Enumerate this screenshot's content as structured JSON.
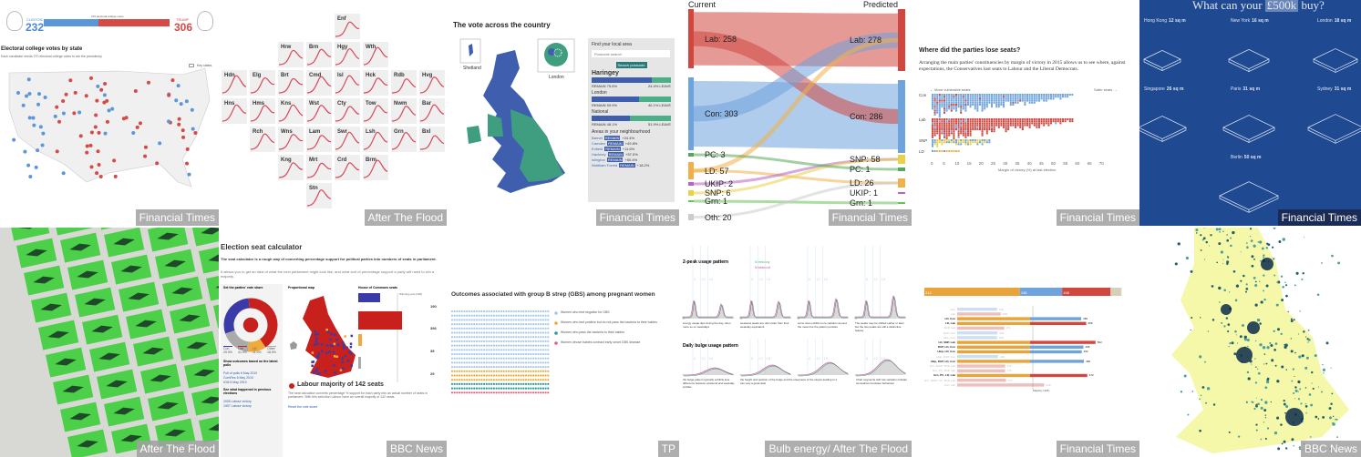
{
  "panels": [
    {
      "source": "Financial Times",
      "clinton_label": "CLINTON",
      "clinton_votes": "232",
      "trump_label": "TRUMP",
      "trump_votes": "306",
      "threshold_label": "270 electoral college votes",
      "title": "Electoral college votes by state",
      "subtitle": "Each candidate needs 270 electoral college votes to win the presidency",
      "key_label": "Key states"
    },
    {
      "source": "After The Flood",
      "tiles": [
        "Enf",
        "Hrw",
        "Brn",
        "Hgy",
        "Wth",
        "Hdn",
        "Elg",
        "Brt",
        "Cmd",
        "Isl",
        "Hck",
        "Rdb",
        "Hvg",
        "Hns",
        "Hms",
        "Kns",
        "Wst",
        "Cty",
        "Tow",
        "Nwm",
        "Bar",
        "Rch",
        "Wns",
        "Lam",
        "Swr",
        "Lsh",
        "Grn",
        "Bxl",
        "Kng",
        "Mrt",
        "Crd",
        "Brm",
        "Stn"
      ]
    },
    {
      "source": "Financial Times",
      "title": "The vote across the country",
      "shetland": "Shetland",
      "london": "London",
      "find_label": "Find your local area",
      "postcode_placeholder": "Postcode search",
      "search_button": "Search postcode",
      "areas": [
        {
          "name": "Haringey",
          "remain": "REMAIN 75.6%",
          "leave": "24.4% LEAVE",
          "pct": 75.6
        },
        {
          "name": "London",
          "remain": "REMAIN 59.9%",
          "leave": "40.1% LEAVE",
          "pct": 59.9
        },
        {
          "name": "National",
          "remain": "REMAIN 48.1%",
          "leave": "51.9% LEAVE",
          "pct": 48.1
        }
      ],
      "neigh_label": "Areas in your neighbourhood",
      "neighbours": [
        {
          "name": "Barnet",
          "badge": "REMAIN",
          "val": "+24.4%"
        },
        {
          "name": "Camden",
          "badge": "REMAIN",
          "val": "+49.8%"
        },
        {
          "name": "Enfield",
          "badge": "REMAIN",
          "val": "+11.6%"
        },
        {
          "name": "Hackney",
          "badge": "REMAIN",
          "val": "+57.0%"
        },
        {
          "name": "Islington",
          "badge": "REMAIN",
          "val": "+50.4%"
        },
        {
          "name": "Waltham Forest",
          "badge": "REMAIN",
          "val": "+18.2%"
        }
      ]
    },
    {
      "source": "Financial Times",
      "current": "Current",
      "predicted": "Predicted",
      "left": [
        {
          "label": "Lab: 258",
          "color": "#d0473f"
        },
        {
          "label": "Con: 303",
          "color": "#6fa3dc"
        },
        {
          "label": "PC: 3",
          "color": "#58a55c"
        },
        {
          "label": "LD: 57",
          "color": "#f2b04a"
        },
        {
          "label": "UKIP: 2",
          "color": "#b565c5"
        },
        {
          "label": "SNP: 6",
          "color": "#e9d24a"
        },
        {
          "label": "Grn: 1",
          "color": "#6abf5a"
        },
        {
          "label": "Oth: 20",
          "color": "#cccccc"
        }
      ],
      "right": [
        {
          "label": "Lab: 278",
          "color": "#d0473f"
        },
        {
          "label": "Con: 286",
          "color": "#6fa3dc"
        },
        {
          "label": "SNP: 58",
          "color": "#e9d24a"
        },
        {
          "label": "PC: 1",
          "color": "#58a55c"
        },
        {
          "label": "LD: 26",
          "color": "#f2b04a"
        },
        {
          "label": "UKIP: 1",
          "color": "#b565c5"
        },
        {
          "label": "Grn: 1",
          "color": "#6abf5a"
        }
      ]
    },
    {
      "source": "Financial Times",
      "title": "Where did the parties lose seats?",
      "body": "Arranging the main parties' constituencies by margin of victory in 2015 allows us to see where, against expectations, the Conservatives lost seats to Labour and the Liberal Democrats.",
      "more_vulnerable": "← More vulnerable seats",
      "safer": "Safer seats →",
      "rows": [
        "Con",
        "Lab",
        "SNP",
        "LD"
      ],
      "ticks": [
        "0",
        "5",
        "10",
        "15",
        "20",
        "25",
        "30",
        "35",
        "40",
        "45",
        "50",
        "55",
        "60",
        "65",
        "70"
      ],
      "xlabel": "Margin of victory (%) at last election"
    },
    {
      "source": "Financial Times",
      "title_pre": "What can your",
      "title_hl": "£500k",
      "title_post": "buy?",
      "cities": [
        {
          "name": "Hong Kong",
          "size": "12 sq m"
        },
        {
          "name": "New York",
          "size": "16 sq m"
        },
        {
          "name": "London",
          "size": "18 sq m"
        },
        {
          "name": "Singapore",
          "size": "26 sq m"
        },
        {
          "name": "Paris",
          "size": "31 sq m"
        },
        {
          "name": "Sydney",
          "size": "31 sq m"
        },
        {
          "name": "Berlin",
          "size": "50 sq m"
        }
      ]
    },
    {
      "source": "After The Flood"
    },
    {
      "source": "BBC News",
      "title": "Election seat calculator",
      "intro": "The seat calculator is a rough way of converting percentage support for political parties into numbers of seats in parliament.",
      "intro2": "It allows you to get an idea of what the next parliament might look like, and what sort of percentage support a party will need to win a majority.",
      "set_label": "Set the parties' vote share",
      "map_label": "Proportional map",
      "seats_label": "House of Commons seats",
      "winning": "Winning post (326)",
      "shares": [
        {
          "name": "Con",
          "val": "29.0%",
          "color": "#3a3aa8"
        },
        {
          "name": "Lab",
          "val": "41.9%",
          "color": "#c8201d"
        },
        {
          "name": "LD",
          "val": "11.0%",
          "color": "#f2a93b"
        },
        {
          "name": "Other",
          "val": "18.0%",
          "color": "#aaaaaa"
        }
      ],
      "seats": [
        "190",
        "396",
        "35",
        "29"
      ],
      "outcomes_label": "Show outcomes based on the latest polls",
      "polls": [
        "Poll of polls 6 May 2010",
        "ComRes 6 May 2010",
        "ICM 6 May 2010"
      ],
      "prev_label": "See what happened in previous elections",
      "prev": [
        "2005 Labour victory",
        "1997 Labour victory"
      ],
      "result": "Labour majority of 142 seats",
      "result_body": "The seat calculator converts percentage % support for each party into an actual number of seats in parliament. With this selection Labour have an overall majority of 142 seats.",
      "reset": "Reset the vote share"
    },
    {
      "source": "TP",
      "title": "Outcomes associated with group B strep (GBS) among pregnant women",
      "legend": [
        {
          "label": "Women who test negative for GBS",
          "color": "#a8c8e8"
        },
        {
          "label": "Women who test positive but do not pass the bacteria to their babies",
          "color": "#f0a830"
        },
        {
          "label": "Women who pass the bacteria to their babies",
          "color": "#2a9a9a"
        },
        {
          "label": "Women whose babies contract early onset GBS disease",
          "color": "#e0607a"
        }
      ]
    },
    {
      "source": "Bulb energy/ After The Flood",
      "title1": "2-peak usage pattern",
      "title2": "Daily bulge usage pattern",
      "weekday": "Weekday",
      "weekend": "Weekend",
      "hours": [
        "6",
        "12",
        "18"
      ],
      "notes1": [
        "energy usage dips during the day, often more so on weekdays",
        "weekend peaks are often later than their weekday equivalent",
        "some sites exhibit more variation around the mean but the pattern persists",
        "The peaks may be shifted earlier or later but the two peaks are still a distinctive feature"
      ],
      "notes2": [
        "the bulge pattern typically exhibits less difference between weekend and weekday profiles",
        "the height and position of the bulge and the steepness of the slopes leading to it can vary a great deal",
        "Chart segments with low variation indicate somewhat consistent behaviour"
      ]
    },
    {
      "source": "Financial Times",
      "top": [
        {
          "label": "312",
          "color": "#e8a33b",
          "v": 312
        },
        {
          "label": "138",
          "color": "#6fa3dc",
          "v": 138
        },
        {
          "label": "158",
          "color": "#d0473f",
          "v": 158
        }
      ],
      "rows": [
        {
          "name": "Con",
          "vals": [
            0,
            0,
            "Con"
          ],
          "n": "145",
          "dim": true
        },
        {
          "name": "Lab",
          "n": "158",
          "dim": true
        },
        {
          "name": "LD, Con",
          "n": "450"
        },
        {
          "name": "LD, Lab",
          "n": "468"
        },
        {
          "name": "SNP, Lab",
          "n": "171",
          "dim": true
        },
        {
          "name": "DUP, Con",
          "n": "146",
          "dim": true
        },
        {
          "name": "Ukip, Con",
          "n": "145",
          "dim": true
        },
        {
          "name": "LD, SNP, Lab",
          "n": "502"
        },
        {
          "name": "DUP, LD, Con",
          "n": "458"
        },
        {
          "name": "Ukip, LD, Con",
          "n": "452"
        },
        {
          "name": "Ukip, DUP, Con",
          "n": "148",
          "dim": true
        },
        {
          "name": "Ukip, DUP, LD, Con",
          "n": "460"
        },
        {
          "name": "Grn, SDLP, SNP, Lab",
          "n": "174",
          "dim": true
        },
        {
          "name": "Grn, PC, SNP, Lab",
          "n": "174",
          "dim": true
        },
        {
          "name": "Grn, PC, LD, Lab",
          "n": "472"
        },
        {
          "name": "Grn, SDLP, PC, SNP, Lab",
          "n": "177",
          "dim": true
        },
        {
          "name": "Con, Lab",
          "n": "316",
          "dim": true
        }
      ],
      "majority": "Majority (326)"
    },
    {
      "source": "BBC News"
    }
  ]
}
